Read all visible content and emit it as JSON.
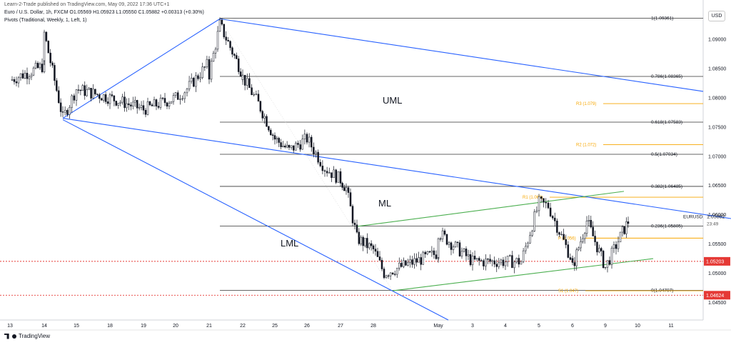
{
  "header": {
    "published": "Learn-2-Trade published on TradingView.com, May 09, 2022 17:36 UTC+1",
    "symbol_line": "Euro / U.S. Dollar, 1h, FXCM  O1.05569  H1.05923  L1.05550  C1.05882  +0.00313 (+0.30%)",
    "pivots_line": "Pivots (Traditional, Weekly, 1, Left, 1)"
  },
  "currency_button": "USD",
  "footer": {
    "brand": "TradingView"
  },
  "colors": {
    "candle": "#131722",
    "pitchfork": "#2962ff",
    "green_channel": "#4caf50",
    "pivot": "#f7a600",
    "fib": "#333333",
    "red_level": "#e53935",
    "price_label_bg": "#131722"
  },
  "chart_data": {
    "type": "candlestick",
    "symbol": "EURUSD",
    "timeframe": "1h",
    "x_ticks": [
      "13",
      "14",
      "15",
      "18",
      "19",
      "20",
      "21",
      "22",
      "25",
      "26",
      "27",
      "28",
      "May",
      "3",
      "4",
      "5",
      "6",
      "9",
      "10",
      "11"
    ],
    "y_ticks": [
      "1.09000",
      "1.08500",
      "1.08000",
      "1.07500",
      "1.07000",
      "1.06500",
      "1.06000",
      "1.05500",
      "1.05000",
      "1.04500"
    ],
    "ylim": [
      1.042,
      1.0955
    ],
    "close_path": [
      [
        "13",
        1.083
      ],
      [
        "14",
        1.0855
      ],
      [
        "14",
        1.091
      ],
      [
        "14.5",
        1.0765
      ],
      [
        "15",
        1.0815
      ],
      [
        "18",
        1.08
      ],
      [
        "19",
        1.078
      ],
      [
        "20",
        1.08
      ],
      [
        "20.5",
        1.0815
      ],
      [
        "21",
        1.086
      ],
      [
        "21",
        1.084
      ],
      [
        "21.5",
        1.0925
      ],
      [
        "22",
        1.084
      ],
      [
        "22",
        1.0835
      ],
      [
        "22.5",
        1.079
      ],
      [
        "25",
        1.073
      ],
      [
        "25.5",
        1.071
      ],
      [
        "26",
        1.073
      ],
      [
        "26.5",
        1.068
      ],
      [
        "27",
        1.066
      ],
      [
        "27.2",
        1.0645
      ],
      [
        "27.5",
        1.056
      ],
      [
        "28",
        1.054
      ],
      [
        "28.3",
        1.05
      ],
      [
        "May",
        1.0535
      ],
      [
        "May",
        1.057
      ],
      [
        "3",
        1.052
      ],
      [
        "4",
        1.052
      ],
      [
        "4.5",
        1.052
      ],
      [
        "5",
        1.062
      ],
      [
        "5.5",
        1.0615
      ],
      [
        "6",
        1.052
      ],
      [
        "6",
        1.051
      ],
      [
        "6.5",
        1.059
      ],
      [
        "9",
        1.051
      ],
      [
        "9.5",
        1.057
      ],
      [
        "9.7",
        1.05882
      ]
    ],
    "last_price": {
      "label": "EURUSD",
      "value": "1.05882",
      "countdown": "23:49"
    },
    "levels": {
      "fib": [
        {
          "label": "1(1.09361)",
          "value": 1.09361
        },
        {
          "label": "0.786(1.08365)",
          "value": 1.08365
        },
        {
          "label": "0.618(1.07583)",
          "value": 1.07583
        },
        {
          "label": "0.5(1.07034)",
          "value": 1.07034
        },
        {
          "label": "0.382(1.06485)",
          "value": 1.06485
        },
        {
          "label": "0.236(1.05805)",
          "value": 1.05805
        },
        {
          "label": "0(1.04707)",
          "value": 1.04707
        }
      ],
      "pivots": [
        {
          "label": "R3 (1.079)",
          "value": 1.079
        },
        {
          "label": "R2 (1.072)",
          "value": 1.072
        },
        {
          "label": "R1 (1.063)",
          "value": 1.063
        },
        {
          "label": "P (1.056)",
          "value": 1.056
        },
        {
          "label": "S1 (1.047)",
          "value": 1.047
        }
      ],
      "red": [
        {
          "label": "1.05203",
          "value": 1.05203
        },
        {
          "label": "1.04624",
          "value": 1.04624
        }
      ]
    },
    "annotations": [
      "UML",
      "ML",
      "LML"
    ],
    "fork_anchors": {
      "p0": [
        "14.5",
        1.0765
      ],
      "p1": [
        "21.5",
        1.0935
      ],
      "p2": [
        "28.5",
        1.047
      ]
    },
    "green_channel": {
      "upper": [
        [
          "27.5",
          1.058
        ],
        [
          "9.5",
          1.064
        ]
      ],
      "lower": [
        [
          "28.5",
          1.047
        ],
        [
          "9.9",
          1.0525
        ]
      ]
    }
  }
}
